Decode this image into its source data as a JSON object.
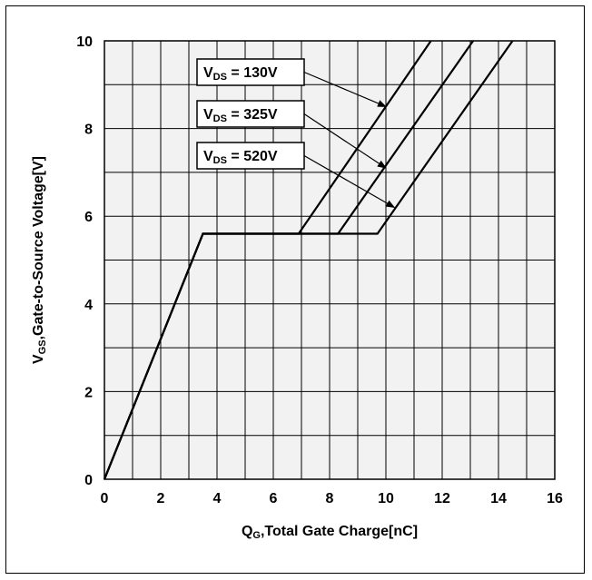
{
  "chart_data": {
    "type": "line",
    "xlabel": {
      "main": "Q",
      "sub": "G",
      "rest": ",Total Gate Charge[nC]"
    },
    "ylabel": {
      "main": "V",
      "sub": "GS",
      "rest": ",Gate-to-Source Voltage[V]"
    },
    "xlim": [
      0,
      16
    ],
    "ylim": [
      0,
      10
    ],
    "xticks": [
      "0",
      "2",
      "4",
      "6",
      "8",
      "10",
      "12",
      "14",
      "16"
    ],
    "yticks": [
      "0",
      "2",
      "4",
      "6",
      "8",
      "10"
    ],
    "grid": true,
    "plot_background": "#f2f2f2",
    "line_color": "#000000",
    "series": [
      {
        "points": [
          [
            0,
            0
          ],
          [
            3.5,
            5.6
          ],
          [
            6.9,
            5.6
          ],
          [
            11.6,
            10
          ]
        ]
      },
      {
        "points": [
          [
            0,
            0
          ],
          [
            3.5,
            5.6
          ],
          [
            8.3,
            5.6
          ],
          [
            13.1,
            10
          ]
        ]
      },
      {
        "points": [
          [
            0,
            0
          ],
          [
            3.5,
            5.6
          ],
          [
            9.7,
            5.6
          ],
          [
            14.5,
            10
          ]
        ]
      }
    ],
    "annotations": [
      {
        "main": "V",
        "sub": "DS",
        "rest": " = 130V",
        "points_to": [
          10.0,
          8.5
        ]
      },
      {
        "main": "V",
        "sub": "DS",
        "rest": " = 325V",
        "points_to": [
          10.0,
          7.1
        ]
      },
      {
        "main": "V",
        "sub": "DS",
        "rest": " = 520V",
        "points_to": [
          10.3,
          6.2
        ]
      }
    ]
  }
}
